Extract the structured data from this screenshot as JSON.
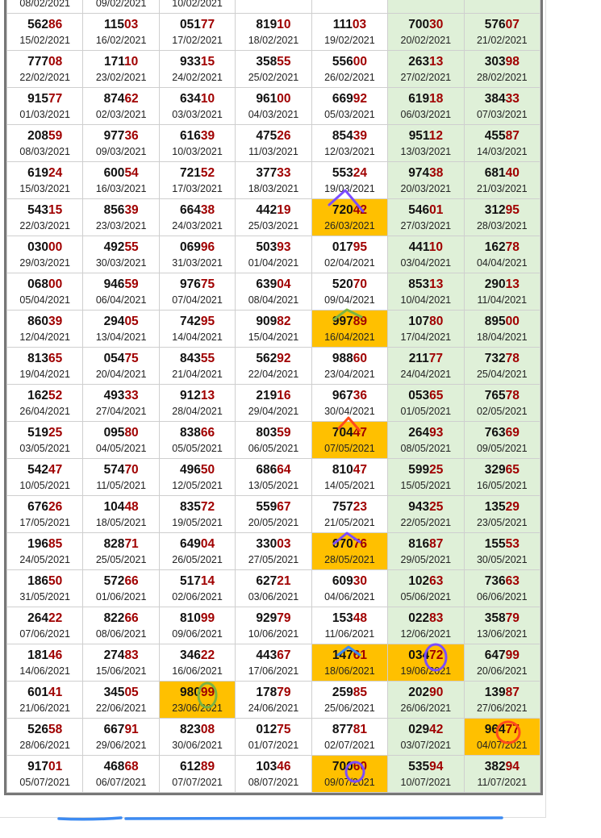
{
  "colors": {
    "accent_digits": "#a00000",
    "weekend_bg": "#dff0d8",
    "highlight_bg": "#ffc000",
    "border": "#777777"
  },
  "rows": [
    [
      {
        "num": "",
        "date": "08/02/2021"
      },
      {
        "num": "",
        "date": "09/02/2021"
      },
      {
        "num": "",
        "date": "10/02/2021"
      },
      {
        "num": "",
        "date": ""
      },
      {
        "num": "",
        "date": ""
      },
      {
        "num": "",
        "date": ""
      },
      {
        "num": "",
        "date": ""
      }
    ],
    [
      {
        "num": "56286",
        "date": "15/02/2021"
      },
      {
        "num": "11503",
        "date": "16/02/2021"
      },
      {
        "num": "05177",
        "date": "17/02/2021"
      },
      {
        "num": "81910",
        "date": "18/02/2021"
      },
      {
        "num": "11103",
        "date": "19/02/2021"
      },
      {
        "num": "70030",
        "date": "20/02/2021"
      },
      {
        "num": "57607",
        "date": "21/02/2021"
      }
    ],
    [
      {
        "num": "77708",
        "date": "22/02/2021"
      },
      {
        "num": "17110",
        "date": "23/02/2021"
      },
      {
        "num": "93315",
        "date": "24/02/2021"
      },
      {
        "num": "35855",
        "date": "25/02/2021"
      },
      {
        "num": "55600",
        "date": "26/02/2021"
      },
      {
        "num": "26313",
        "date": "27/02/2021"
      },
      {
        "num": "30398",
        "date": "28/02/2021"
      }
    ],
    [
      {
        "num": "91577",
        "date": "01/03/2021"
      },
      {
        "num": "87462",
        "date": "02/03/2021"
      },
      {
        "num": "63410",
        "date": "03/03/2021"
      },
      {
        "num": "96100",
        "date": "04/03/2021"
      },
      {
        "num": "66992",
        "date": "05/03/2021"
      },
      {
        "num": "61918",
        "date": "06/03/2021"
      },
      {
        "num": "38433",
        "date": "07/03/2021"
      }
    ],
    [
      {
        "num": "20859",
        "date": "08/03/2021"
      },
      {
        "num": "97736",
        "date": "09/03/2021"
      },
      {
        "num": "61639",
        "date": "10/03/2021"
      },
      {
        "num": "47526",
        "date": "11/03/2021"
      },
      {
        "num": "85439",
        "date": "12/03/2021"
      },
      {
        "num": "95112",
        "date": "13/03/2021"
      },
      {
        "num": "45587",
        "date": "14/03/2021"
      }
    ],
    [
      {
        "num": "61924",
        "date": "15/03/2021"
      },
      {
        "num": "60054",
        "date": "16/03/2021"
      },
      {
        "num": "72152",
        "date": "17/03/2021"
      },
      {
        "num": "37733",
        "date": "18/03/2021"
      },
      {
        "num": "55324",
        "date": "19/03/2021"
      },
      {
        "num": "97438",
        "date": "20/03/2021"
      },
      {
        "num": "68140",
        "date": "21/03/2021"
      }
    ],
    [
      {
        "num": "54315",
        "date": "22/03/2021"
      },
      {
        "num": "85639",
        "date": "23/03/2021"
      },
      {
        "num": "66438",
        "date": "24/03/2021"
      },
      {
        "num": "44219",
        "date": "25/03/2021"
      },
      {
        "num": "72042",
        "date": "26/03/2021",
        "hl": true
      },
      {
        "num": "54601",
        "date": "27/03/2021"
      },
      {
        "num": "31295",
        "date": "28/03/2021"
      }
    ],
    [
      {
        "num": "03000",
        "date": "29/03/2021"
      },
      {
        "num": "49255",
        "date": "30/03/2021"
      },
      {
        "num": "06996",
        "date": "31/03/2021"
      },
      {
        "num": "50393",
        "date": "01/04/2021"
      },
      {
        "num": "01795",
        "date": "02/04/2021"
      },
      {
        "num": "44110",
        "date": "03/04/2021"
      },
      {
        "num": "16278",
        "date": "04/04/2021"
      }
    ],
    [
      {
        "num": "06800",
        "date": "05/04/2021"
      },
      {
        "num": "94659",
        "date": "06/04/2021"
      },
      {
        "num": "97675",
        "date": "07/04/2021"
      },
      {
        "num": "63904",
        "date": "08/04/2021"
      },
      {
        "num": "52070",
        "date": "09/04/2021"
      },
      {
        "num": "85313",
        "date": "10/04/2021"
      },
      {
        "num": "29013",
        "date": "11/04/2021"
      }
    ],
    [
      {
        "num": "86039",
        "date": "12/04/2021"
      },
      {
        "num": "29405",
        "date": "13/04/2021"
      },
      {
        "num": "74295",
        "date": "14/04/2021"
      },
      {
        "num": "90982",
        "date": "15/04/2021"
      },
      {
        "num": "99789",
        "date": "16/04/2021",
        "hl": true
      },
      {
        "num": "10780",
        "date": "17/04/2021"
      },
      {
        "num": "89500",
        "date": "18/04/2021"
      }
    ],
    [
      {
        "num": "81365",
        "date": "19/04/2021"
      },
      {
        "num": "05475",
        "date": "20/04/2021"
      },
      {
        "num": "84355",
        "date": "21/04/2021"
      },
      {
        "num": "56292",
        "date": "22/04/2021"
      },
      {
        "num": "98860",
        "date": "23/04/2021"
      },
      {
        "num": "21177",
        "date": "24/04/2021"
      },
      {
        "num": "73278",
        "date": "25/04/2021"
      }
    ],
    [
      {
        "num": "16252",
        "date": "26/04/2021"
      },
      {
        "num": "49333",
        "date": "27/04/2021"
      },
      {
        "num": "91213",
        "date": "28/04/2021"
      },
      {
        "num": "21916",
        "date": "29/04/2021"
      },
      {
        "num": "96736",
        "date": "30/04/2021"
      },
      {
        "num": "05365",
        "date": "01/05/2021"
      },
      {
        "num": "76578",
        "date": "02/05/2021"
      }
    ],
    [
      {
        "num": "51925",
        "date": "03/05/2021"
      },
      {
        "num": "09580",
        "date": "04/05/2021"
      },
      {
        "num": "83866",
        "date": "05/05/2021"
      },
      {
        "num": "80359",
        "date": "06/05/2021"
      },
      {
        "num": "70447",
        "date": "07/05/2021",
        "hl": true
      },
      {
        "num": "26493",
        "date": "08/05/2021"
      },
      {
        "num": "76369",
        "date": "09/05/2021"
      }
    ],
    [
      {
        "num": "54247",
        "date": "10/05/2021"
      },
      {
        "num": "57470",
        "date": "11/05/2021"
      },
      {
        "num": "49650",
        "date": "12/05/2021"
      },
      {
        "num": "68664",
        "date": "13/05/2021"
      },
      {
        "num": "81047",
        "date": "14/05/2021"
      },
      {
        "num": "59925",
        "date": "15/05/2021"
      },
      {
        "num": "32965",
        "date": "16/05/2021"
      }
    ],
    [
      {
        "num": "67626",
        "date": "17/05/2021"
      },
      {
        "num": "10448",
        "date": "18/05/2021"
      },
      {
        "num": "83572",
        "date": "19/05/2021"
      },
      {
        "num": "55967",
        "date": "20/05/2021"
      },
      {
        "num": "75723",
        "date": "21/05/2021"
      },
      {
        "num": "94325",
        "date": "22/05/2021"
      },
      {
        "num": "13529",
        "date": "23/05/2021"
      }
    ],
    [
      {
        "num": "19685",
        "date": "24/05/2021"
      },
      {
        "num": "82871",
        "date": "25/05/2021"
      },
      {
        "num": "64904",
        "date": "26/05/2021"
      },
      {
        "num": "33003",
        "date": "27/05/2021"
      },
      {
        "num": "07076",
        "date": "28/05/2021",
        "hl": true
      },
      {
        "num": "81687",
        "date": "29/05/2021"
      },
      {
        "num": "15553",
        "date": "30/05/2021"
      }
    ],
    [
      {
        "num": "18650",
        "date": "31/05/2021"
      },
      {
        "num": "57266",
        "date": "01/06/2021"
      },
      {
        "num": "51714",
        "date": "02/06/2021"
      },
      {
        "num": "62721",
        "date": "03/06/2021"
      },
      {
        "num": "60930",
        "date": "04/06/2021"
      },
      {
        "num": "10263",
        "date": "05/06/2021"
      },
      {
        "num": "73663",
        "date": "06/06/2021"
      }
    ],
    [
      {
        "num": "26422",
        "date": "07/06/2021"
      },
      {
        "num": "82266",
        "date": "08/06/2021"
      },
      {
        "num": "81099",
        "date": "09/06/2021"
      },
      {
        "num": "92979",
        "date": "10/06/2021"
      },
      {
        "num": "15348",
        "date": "11/06/2021"
      },
      {
        "num": "02283",
        "date": "12/06/2021"
      },
      {
        "num": "35879",
        "date": "13/06/2021"
      }
    ],
    [
      {
        "num": "18146",
        "date": "14/06/2021"
      },
      {
        "num": "27483",
        "date": "15/06/2021"
      },
      {
        "num": "34622",
        "date": "16/06/2021"
      },
      {
        "num": "44367",
        "date": "17/06/2021"
      },
      {
        "num": "14761",
        "date": "18/06/2021",
        "hl": true
      },
      {
        "num": "03472",
        "date": "19/06/2021",
        "hl": true
      },
      {
        "num": "64799",
        "date": "20/06/2021"
      }
    ],
    [
      {
        "num": "60141",
        "date": "21/06/2021"
      },
      {
        "num": "34505",
        "date": "22/06/2021"
      },
      {
        "num": "98099",
        "date": "23/06/2021",
        "hl": true
      },
      {
        "num": "17879",
        "date": "24/06/2021"
      },
      {
        "num": "25985",
        "date": "25/06/2021"
      },
      {
        "num": "20290",
        "date": "26/06/2021"
      },
      {
        "num": "13987",
        "date": "27/06/2021"
      }
    ],
    [
      {
        "num": "52658",
        "date": "28/06/2021"
      },
      {
        "num": "66791",
        "date": "29/06/2021"
      },
      {
        "num": "82308",
        "date": "30/06/2021"
      },
      {
        "num": "01275",
        "date": "01/07/2021"
      },
      {
        "num": "87781",
        "date": "02/07/2021"
      },
      {
        "num": "02942",
        "date": "03/07/2021"
      },
      {
        "num": "96477",
        "date": "04/07/2021",
        "hl": true
      }
    ],
    [
      {
        "num": "91701",
        "date": "05/07/2021"
      },
      {
        "num": "46868",
        "date": "06/07/2021"
      },
      {
        "num": "61289",
        "date": "07/07/2021"
      },
      {
        "num": "10346",
        "date": "08/07/2021"
      },
      {
        "num": "70060",
        "date": "09/07/2021",
        "hl": true
      },
      {
        "num": "53594",
        "date": "10/07/2021"
      },
      {
        "num": "38294",
        "date": "11/07/2021"
      }
    ]
  ]
}
